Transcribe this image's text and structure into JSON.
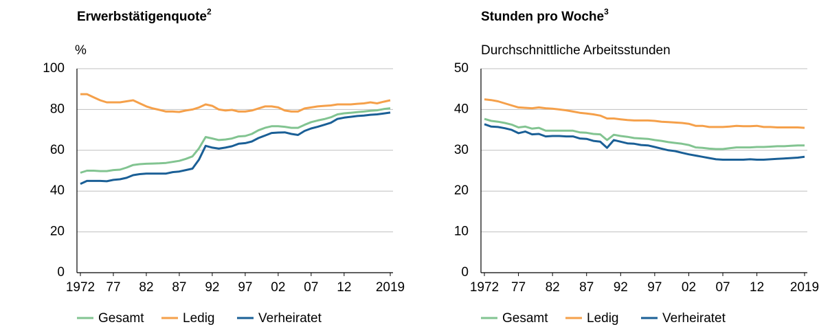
{
  "chart_data": [
    {
      "type": "line",
      "title": "Erwerbstätigenquote",
      "title_note": "2",
      "ylabel": "%",
      "x": [
        1972,
        1973,
        1974,
        1975,
        1976,
        1977,
        1978,
        1979,
        1980,
        1981,
        1982,
        1983,
        1984,
        1985,
        1986,
        1987,
        1988,
        1989,
        1990,
        1991,
        1992,
        1993,
        1994,
        1995,
        1996,
        1997,
        1998,
        1999,
        2000,
        2001,
        2002,
        2003,
        2004,
        2005,
        2006,
        2007,
        2008,
        2009,
        2010,
        2011,
        2012,
        2013,
        2014,
        2015,
        2016,
        2017,
        2018,
        2019
      ],
      "series": [
        {
          "name": "Gesamt",
          "color": "#82c491",
          "values": [
            49,
            50,
            50,
            49.8,
            49.8,
            50.3,
            50.5,
            51.5,
            52.8,
            53.2,
            53.4,
            53.5,
            53.6,
            53.8,
            54.3,
            54.8,
            55.8,
            57,
            61,
            66.5,
            65.8,
            65,
            65.3,
            65.8,
            66.8,
            67,
            68,
            69.8,
            71,
            71.8,
            71.8,
            71.5,
            71,
            71,
            72.5,
            73.8,
            74.6,
            75.3,
            76.2,
            77.6,
            78.1,
            78.4,
            78.7,
            79,
            79.4,
            79.6,
            80.2,
            80.6
          ]
        },
        {
          "name": "Ledig",
          "color": "#f5a04a",
          "values": [
            87.5,
            87.5,
            86,
            84.5,
            83.5,
            83.5,
            83.5,
            84,
            84.5,
            83,
            81.5,
            80.5,
            79.8,
            79,
            79,
            78.8,
            79.5,
            80,
            81,
            82.5,
            81.8,
            80,
            79.5,
            79.8,
            79,
            79,
            79.5,
            80.5,
            81.5,
            81.5,
            81,
            79.5,
            79,
            79,
            80.5,
            81,
            81.5,
            81.8,
            82,
            82.5,
            82.5,
            82.5,
            82.8,
            83,
            83.5,
            83,
            83.8,
            84.5
          ]
        },
        {
          "name": "Verheiratet",
          "color": "#1a5f96",
          "values": [
            43.5,
            45,
            45,
            45,
            44.8,
            45.5,
            45.8,
            46.5,
            47.8,
            48.3,
            48.6,
            48.6,
            48.6,
            48.6,
            49.3,
            49.6,
            50.3,
            51,
            55.5,
            62.2,
            61.3,
            60.8,
            61.3,
            62,
            63.2,
            63.5,
            64.3,
            66,
            67.2,
            68.5,
            68.7,
            68.8,
            68,
            67.5,
            69.5,
            70.7,
            71.5,
            72.5,
            73.5,
            75.4,
            76,
            76.4,
            76.8,
            77,
            77.4,
            77.6,
            78,
            78.5
          ]
        }
      ],
      "xlim": [
        1972,
        2019
      ],
      "xticks": [
        1972,
        {
          "value": 1977,
          "label": "77"
        },
        {
          "value": 1982,
          "label": "82"
        },
        {
          "value": 1987,
          "label": "87"
        },
        {
          "value": 1992,
          "label": "92"
        },
        {
          "value": 1997,
          "label": "97"
        },
        {
          "value": 2002,
          "label": "02"
        },
        {
          "value": 2007,
          "label": "07"
        },
        {
          "value": 2012,
          "label": "12"
        },
        2019
      ],
      "ylim": [
        0,
        100
      ],
      "yticks": [
        0,
        20,
        40,
        60,
        80,
        100
      ],
      "grid": true
    },
    {
      "type": "line",
      "title": "Stunden pro Woche",
      "title_note": "3",
      "subtitle": "Durchschnittliche Arbeitsstunden",
      "x": [
        1972,
        1973,
        1974,
        1975,
        1976,
        1977,
        1978,
        1979,
        1980,
        1981,
        1982,
        1983,
        1984,
        1985,
        1986,
        1987,
        1988,
        1989,
        1990,
        1991,
        1992,
        1993,
        1994,
        1995,
        1996,
        1997,
        1998,
        1999,
        2000,
        2001,
        2002,
        2003,
        2004,
        2005,
        2006,
        2007,
        2008,
        2009,
        2010,
        2011,
        2012,
        2013,
        2014,
        2015,
        2016,
        2017,
        2018,
        2019
      ],
      "series": [
        {
          "name": "Gesamt",
          "color": "#82c491",
          "values": [
            37.7,
            37.2,
            37,
            36.7,
            36.3,
            35.6,
            35.8,
            35.3,
            35.5,
            34.8,
            34.8,
            34.8,
            34.8,
            34.8,
            34.4,
            34.3,
            34,
            33.9,
            32.5,
            33.8,
            33.5,
            33.3,
            33,
            32.9,
            32.8,
            32.5,
            32.3,
            32,
            31.8,
            31.6,
            31.3,
            30.7,
            30.6,
            30.4,
            30.3,
            30.3,
            30.5,
            30.7,
            30.7,
            30.7,
            30.8,
            30.8,
            30.9,
            31,
            31,
            31.1,
            31.2,
            31.2
          ]
        },
        {
          "name": "Ledig",
          "color": "#f5a04a",
          "values": [
            42.5,
            42.3,
            42,
            41.5,
            41,
            40.5,
            40.4,
            40.3,
            40.5,
            40.3,
            40.2,
            40,
            39.8,
            39.5,
            39.2,
            39,
            38.8,
            38.5,
            37.8,
            37.8,
            37.6,
            37.4,
            37.3,
            37.3,
            37.3,
            37.2,
            37,
            36.9,
            36.8,
            36.7,
            36.5,
            36,
            36,
            35.7,
            35.7,
            35.7,
            35.8,
            36,
            35.9,
            35.9,
            36,
            35.7,
            35.7,
            35.6,
            35.6,
            35.6,
            35.6,
            35.5
          ]
        },
        {
          "name": "Verheiratet",
          "color": "#1a5f96",
          "values": [
            36.4,
            35.8,
            35.7,
            35.4,
            35,
            34.2,
            34.6,
            33.9,
            34,
            33.4,
            33.5,
            33.5,
            33.4,
            33.4,
            32.9,
            32.8,
            32.3,
            32.1,
            30.6,
            32.5,
            32.1,
            31.7,
            31.6,
            31.3,
            31.2,
            30.8,
            30.4,
            30,
            29.8,
            29.4,
            29,
            28.7,
            28.4,
            28.1,
            27.8,
            27.7,
            27.7,
            27.7,
            27.7,
            27.8,
            27.7,
            27.7,
            27.8,
            27.9,
            28,
            28.1,
            28.2,
            28.4
          ]
        }
      ],
      "xlim": [
        1972,
        2019
      ],
      "xticks": [
        1972,
        {
          "value": 1977,
          "label": "77"
        },
        {
          "value": 1982,
          "label": "82"
        },
        {
          "value": 1987,
          "label": "87"
        },
        {
          "value": 1992,
          "label": "92"
        },
        {
          "value": 1997,
          "label": "97"
        },
        {
          "value": 2002,
          "label": "02"
        },
        {
          "value": 2007,
          "label": "07"
        },
        {
          "value": 2012,
          "label": "12"
        },
        2019
      ],
      "ylim": [
        0,
        50
      ],
      "yticks": [
        0,
        10,
        20,
        30,
        40,
        50
      ],
      "grid": true
    }
  ]
}
